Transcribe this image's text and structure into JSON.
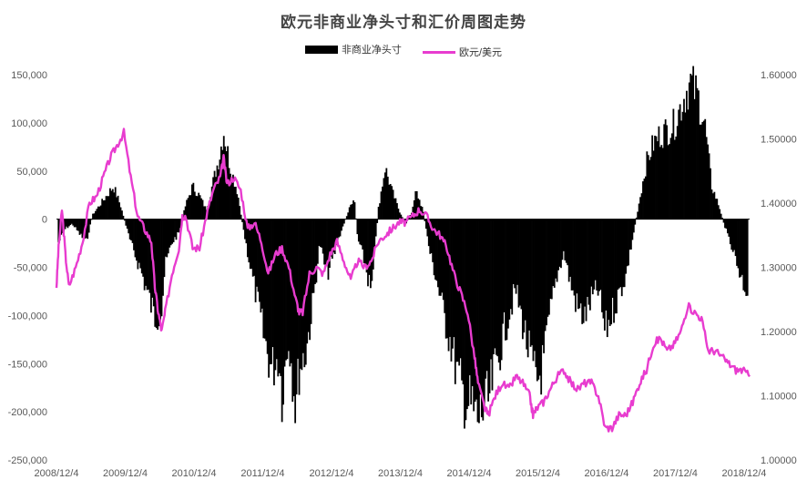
{
  "chart_data": {
    "type": "bar+line",
    "title": "欧元非商业净头寸和汇价周图走势",
    "legend": {
      "placement": "top-center"
    },
    "grid": false,
    "colors": {
      "bar": "#000000",
      "line": "#e83ccf"
    },
    "x_axis": {
      "ticks": [
        "2008/12/4",
        "2009/12/4",
        "2010/12/4",
        "2011/12/4",
        "2012/12/4",
        "2013/12/4",
        "2014/12/4",
        "2015/12/4",
        "2016/12/4",
        "2017/12/4",
        "2018/12/4"
      ],
      "range": [
        2008.92,
        2019.0
      ]
    },
    "y_left": {
      "ticks": [
        "150,000",
        "100,000",
        "50,000",
        "0",
        "-50,000",
        "-100,000",
        "-150,000",
        "-200,000",
        "-250,000"
      ],
      "range": [
        -250000,
        150000
      ]
    },
    "y_right": {
      "ticks": [
        "1.60000",
        "1.50000",
        "1.40000",
        "1.30000",
        "1.20000",
        "1.10000",
        "1.00000"
      ],
      "range": [
        1.0,
        1.6
      ]
    },
    "series": [
      {
        "name": "非商业净头寸",
        "kind": "bar",
        "axis": "left",
        "points": [
          [
            2008.95,
            -25000
          ],
          [
            2009.05,
            -10000
          ],
          [
            2009.15,
            -5000
          ],
          [
            2009.25,
            -15000
          ],
          [
            2009.35,
            -25000
          ],
          [
            2009.45,
            5000
          ],
          [
            2009.6,
            20000
          ],
          [
            2009.75,
            35000
          ],
          [
            2009.85,
            15000
          ],
          [
            2010.0,
            -25000
          ],
          [
            2010.15,
            -55000
          ],
          [
            2010.25,
            -80000
          ],
          [
            2010.35,
            -105000
          ],
          [
            2010.45,
            -95000
          ],
          [
            2010.5,
            -50000
          ],
          [
            2010.6,
            -25000
          ],
          [
            2010.7,
            -15000
          ],
          [
            2010.8,
            15000
          ],
          [
            2010.9,
            35000
          ],
          [
            2011.0,
            25000
          ],
          [
            2011.1,
            10000
          ],
          [
            2011.2,
            40000
          ],
          [
            2011.3,
            70000
          ],
          [
            2011.35,
            95000
          ],
          [
            2011.45,
            55000
          ],
          [
            2011.55,
            30000
          ],
          [
            2011.65,
            -15000
          ],
          [
            2011.75,
            -55000
          ],
          [
            2011.85,
            -90000
          ],
          [
            2011.95,
            -130000
          ],
          [
            2012.05,
            -160000
          ],
          [
            2012.15,
            -145000
          ],
          [
            2012.2,
            -185000
          ],
          [
            2012.3,
            -125000
          ],
          [
            2012.4,
            -200000
          ],
          [
            2012.45,
            -160000
          ],
          [
            2012.55,
            -140000
          ],
          [
            2012.65,
            -90000
          ],
          [
            2012.75,
            -25000
          ],
          [
            2012.85,
            -60000
          ],
          [
            2012.95,
            -40000
          ],
          [
            2013.05,
            -15000
          ],
          [
            2013.15,
            5000
          ],
          [
            2013.25,
            25000
          ],
          [
            2013.3,
            -20000
          ],
          [
            2013.4,
            -45000
          ],
          [
            2013.5,
            -80000
          ],
          [
            2013.6,
            10000
          ],
          [
            2013.7,
            55000
          ],
          [
            2013.8,
            30000
          ],
          [
            2013.9,
            10000
          ],
          [
            2014.0,
            -5000
          ],
          [
            2014.1,
            10000
          ],
          [
            2014.15,
            30000
          ],
          [
            2014.25,
            10000
          ],
          [
            2014.35,
            -35000
          ],
          [
            2014.45,
            -65000
          ],
          [
            2014.55,
            -100000
          ],
          [
            2014.65,
            -130000
          ],
          [
            2014.75,
            -165000
          ],
          [
            2014.85,
            -190000
          ],
          [
            2014.95,
            -200000
          ],
          [
            2015.05,
            -215000
          ],
          [
            2015.1,
            -205000
          ],
          [
            2015.2,
            -195000
          ],
          [
            2015.3,
            -160000
          ],
          [
            2015.4,
            -130000
          ],
          [
            2015.5,
            -100000
          ],
          [
            2015.6,
            -75000
          ],
          [
            2015.7,
            -110000
          ],
          [
            2015.8,
            -145000
          ],
          [
            2015.9,
            -175000
          ],
          [
            2016.0,
            -155000
          ],
          [
            2016.1,
            -100000
          ],
          [
            2016.2,
            -60000
          ],
          [
            2016.3,
            -35000
          ],
          [
            2016.4,
            -70000
          ],
          [
            2016.5,
            -95000
          ],
          [
            2016.6,
            -105000
          ],
          [
            2016.7,
            -85000
          ],
          [
            2016.8,
            -75000
          ],
          [
            2016.9,
            -120000
          ],
          [
            2017.0,
            -100000
          ],
          [
            2017.1,
            -80000
          ],
          [
            2017.2,
            -60000
          ],
          [
            2017.3,
            -20000
          ],
          [
            2017.4,
            20000
          ],
          [
            2017.5,
            60000
          ],
          [
            2017.6,
            80000
          ],
          [
            2017.7,
            90000
          ],
          [
            2017.8,
            95000
          ],
          [
            2017.9,
            100000
          ],
          [
            2018.0,
            120000
          ],
          [
            2018.1,
            140000
          ],
          [
            2018.15,
            145000
          ],
          [
            2018.25,
            130000
          ],
          [
            2018.35,
            100000
          ],
          [
            2018.45,
            35000
          ],
          [
            2018.55,
            15000
          ],
          [
            2018.65,
            -10000
          ],
          [
            2018.75,
            -30000
          ],
          [
            2018.85,
            -55000
          ],
          [
            2018.92,
            -70000
          ],
          [
            2018.97,
            -75000
          ]
        ]
      },
      {
        "name": "欧元/美元",
        "kind": "line",
        "axis": "right",
        "points": [
          [
            2008.92,
            1.27
          ],
          [
            2008.95,
            1.33
          ],
          [
            2009.0,
            1.39
          ],
          [
            2009.05,
            1.32
          ],
          [
            2009.1,
            1.27
          ],
          [
            2009.2,
            1.3
          ],
          [
            2009.3,
            1.34
          ],
          [
            2009.4,
            1.4
          ],
          [
            2009.5,
            1.41
          ],
          [
            2009.6,
            1.44
          ],
          [
            2009.7,
            1.47
          ],
          [
            2009.8,
            1.49
          ],
          [
            2009.9,
            1.51
          ],
          [
            2010.0,
            1.44
          ],
          [
            2010.1,
            1.38
          ],
          [
            2010.2,
            1.36
          ],
          [
            2010.3,
            1.34
          ],
          [
            2010.35,
            1.27
          ],
          [
            2010.4,
            1.23
          ],
          [
            2010.45,
            1.2
          ],
          [
            2010.5,
            1.23
          ],
          [
            2010.6,
            1.29
          ],
          [
            2010.7,
            1.33
          ],
          [
            2010.75,
            1.38
          ],
          [
            2010.8,
            1.38
          ],
          [
            2010.9,
            1.33
          ],
          [
            2011.0,
            1.33
          ],
          [
            2011.1,
            1.38
          ],
          [
            2011.2,
            1.42
          ],
          [
            2011.3,
            1.44
          ],
          [
            2011.35,
            1.47
          ],
          [
            2011.4,
            1.43
          ],
          [
            2011.5,
            1.44
          ],
          [
            2011.6,
            1.42
          ],
          [
            2011.7,
            1.36
          ],
          [
            2011.8,
            1.37
          ],
          [
            2011.9,
            1.34
          ],
          [
            2012.0,
            1.29
          ],
          [
            2012.1,
            1.32
          ],
          [
            2012.2,
            1.33
          ],
          [
            2012.3,
            1.3
          ],
          [
            2012.4,
            1.25
          ],
          [
            2012.45,
            1.23
          ],
          [
            2012.5,
            1.23
          ],
          [
            2012.6,
            1.29
          ],
          [
            2012.7,
            1.3
          ],
          [
            2012.8,
            1.29
          ],
          [
            2012.9,
            1.32
          ],
          [
            2013.0,
            1.34
          ],
          [
            2013.1,
            1.31
          ],
          [
            2013.2,
            1.28
          ],
          [
            2013.3,
            1.31
          ],
          [
            2013.4,
            1.3
          ],
          [
            2013.5,
            1.31
          ],
          [
            2013.6,
            1.34
          ],
          [
            2013.7,
            1.35
          ],
          [
            2013.8,
            1.36
          ],
          [
            2013.9,
            1.37
          ],
          [
            2014.0,
            1.37
          ],
          [
            2014.1,
            1.38
          ],
          [
            2014.2,
            1.39
          ],
          [
            2014.3,
            1.38
          ],
          [
            2014.4,
            1.36
          ],
          [
            2014.5,
            1.35
          ],
          [
            2014.6,
            1.33
          ],
          [
            2014.7,
            1.29
          ],
          [
            2014.8,
            1.26
          ],
          [
            2014.9,
            1.23
          ],
          [
            2015.0,
            1.16
          ],
          [
            2015.05,
            1.12
          ],
          [
            2015.15,
            1.08
          ],
          [
            2015.2,
            1.07
          ],
          [
            2015.3,
            1.1
          ],
          [
            2015.4,
            1.12
          ],
          [
            2015.5,
            1.11
          ],
          [
            2015.6,
            1.13
          ],
          [
            2015.7,
            1.12
          ],
          [
            2015.8,
            1.1
          ],
          [
            2015.85,
            1.07
          ],
          [
            2015.9,
            1.08
          ],
          [
            2016.0,
            1.09
          ],
          [
            2016.1,
            1.11
          ],
          [
            2016.2,
            1.13
          ],
          [
            2016.3,
            1.14
          ],
          [
            2016.4,
            1.12
          ],
          [
            2016.5,
            1.11
          ],
          [
            2016.6,
            1.12
          ],
          [
            2016.7,
            1.12
          ],
          [
            2016.8,
            1.1
          ],
          [
            2016.9,
            1.05
          ],
          [
            2017.0,
            1.05
          ],
          [
            2017.1,
            1.07
          ],
          [
            2017.2,
            1.07
          ],
          [
            2017.3,
            1.09
          ],
          [
            2017.4,
            1.12
          ],
          [
            2017.5,
            1.14
          ],
          [
            2017.6,
            1.18
          ],
          [
            2017.7,
            1.19
          ],
          [
            2017.8,
            1.17
          ],
          [
            2017.9,
            1.18
          ],
          [
            2018.0,
            1.2
          ],
          [
            2018.1,
            1.24
          ],
          [
            2018.2,
            1.23
          ],
          [
            2018.3,
            1.22
          ],
          [
            2018.4,
            1.17
          ],
          [
            2018.5,
            1.17
          ],
          [
            2018.6,
            1.16
          ],
          [
            2018.7,
            1.15
          ],
          [
            2018.8,
            1.14
          ],
          [
            2018.9,
            1.14
          ],
          [
            2019.0,
            1.13
          ]
        ]
      }
    ]
  }
}
